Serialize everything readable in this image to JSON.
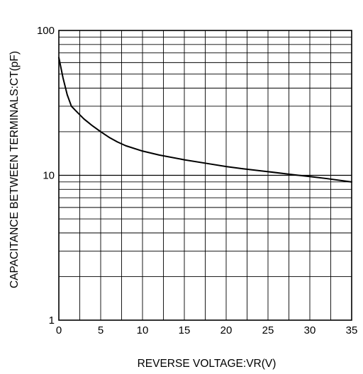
{
  "chart_data": {
    "type": "line",
    "title": "",
    "xlabel": "REVERSE VOLTAGE:VR(V)",
    "ylabel": "CAPACITANCE BETWEEN TERMINALS:CT(pF)",
    "xlim": [
      0,
      35
    ],
    "ylim": [
      1,
      100
    ],
    "yscale": "log",
    "grid": true,
    "x_ticks": [
      0,
      5,
      10,
      15,
      20,
      25,
      30,
      35
    ],
    "x_tick_labels": [
      "0",
      "5",
      "10",
      "15",
      "20",
      "25",
      "30",
      "35"
    ],
    "y_ticks": [
      1,
      10,
      100
    ],
    "y_tick_labels": [
      "1",
      "10",
      "100"
    ],
    "x_grid_step": 2.5,
    "line_color": "#000000",
    "series": [
      {
        "x": [
          0,
          0.5,
          1,
          1.5,
          2,
          3,
          4,
          5,
          6,
          7,
          8,
          10,
          12,
          15,
          18,
          20,
          22,
          25,
          28,
          30,
          32,
          35
        ],
        "values": [
          65,
          47,
          36,
          30,
          28,
          24.5,
          22,
          20,
          18.3,
          17,
          16,
          14.7,
          13.8,
          12.8,
          12,
          11.5,
          11.1,
          10.6,
          10.1,
          9.8,
          9.5,
          9
        ]
      }
    ]
  }
}
